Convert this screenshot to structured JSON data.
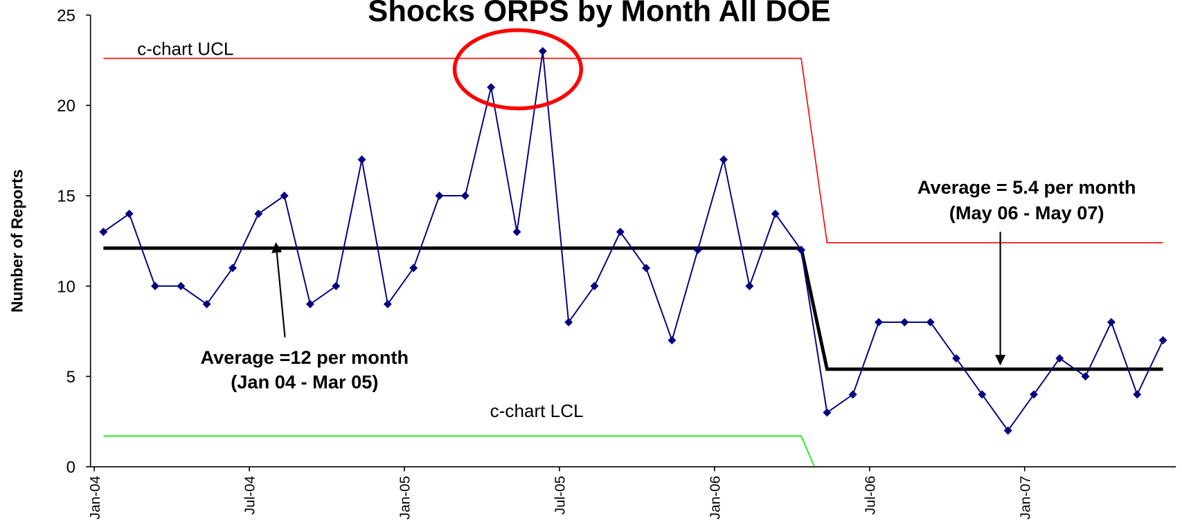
{
  "chart_data": {
    "type": "line",
    "title": "Shocks ORPS by Month All DOE",
    "y_label": "Number of Reports",
    "categories": [
      "Jan-04",
      null,
      null,
      null,
      null,
      null,
      "Jul-04",
      null,
      null,
      null,
      null,
      null,
      "Jan-05",
      null,
      null,
      null,
      null,
      null,
      "Jul-05",
      null,
      null,
      null,
      null,
      null,
      "Jan-06",
      null,
      null,
      null,
      null,
      null,
      "Jul-06",
      null,
      null,
      null,
      null,
      null,
      "Jan-07",
      null,
      null,
      null,
      null,
      null
    ],
    "series": [
      {
        "color": "#000080",
        "markers": true,
        "values": [
          13,
          14,
          10,
          10,
          9,
          11,
          14,
          15,
          9,
          10,
          17,
          9,
          11,
          15,
          15,
          21,
          13,
          23,
          8,
          10,
          13,
          11,
          7,
          12,
          17,
          10,
          14,
          12,
          3,
          4,
          8,
          8,
          8,
          6,
          4,
          2,
          4,
          6,
          5,
          8,
          4,
          7
        ]
      },
      {
        "name": "c-chart UCL",
        "color": "#ff0000",
        "values": [
          22.6,
          22.6,
          22.6,
          22.6,
          22.6,
          22.6,
          22.6,
          22.6,
          22.6,
          22.6,
          22.6,
          22.6,
          22.6,
          22.6,
          22.6,
          22.6,
          22.6,
          22.6,
          22.6,
          22.6,
          22.6,
          22.6,
          22.6,
          22.6,
          22.6,
          22.6,
          22.6,
          22.6,
          12.4,
          12.4,
          12.4,
          12.4,
          12.4,
          12.4,
          12.4,
          12.4,
          12.4,
          12.4,
          12.4,
          12.4,
          12.4,
          12.4
        ]
      },
      {
        "color": "#000000",
        "values": [
          12.1,
          12.1,
          12.1,
          12.1,
          12.1,
          12.1,
          12.1,
          12.1,
          12.1,
          12.1,
          12.1,
          12.1,
          12.1,
          12.1,
          12.1,
          12.1,
          12.1,
          12.1,
          12.1,
          12.1,
          12.1,
          12.1,
          12.1,
          12.1,
          12.1,
          12.1,
          12.1,
          12.1,
          5.4,
          5.4,
          5.4,
          5.4,
          5.4,
          5.4,
          5.4,
          5.4,
          5.4,
          5.4,
          5.4,
          5.4,
          5.4,
          5.4
        ]
      },
      {
        "name": "c-chart LCL",
        "color": "#00ee00",
        "values": [
          1.7,
          1.7,
          1.7,
          1.7,
          1.7,
          1.7,
          1.7,
          1.7,
          1.7,
          1.7,
          1.7,
          1.7,
          1.7,
          1.7,
          1.7,
          1.7,
          1.7,
          1.7,
          1.7,
          1.7,
          1.7,
          1.7,
          1.7,
          1.7,
          1.7,
          1.7,
          1.7,
          1.7,
          -1.6,
          -1.6,
          -1.6,
          -1.6,
          -1.6,
          -1.6,
          -1.6,
          -1.6,
          -1.6,
          -1.6,
          -1.6,
          -1.6,
          -1.6,
          -1.6
        ]
      }
    ],
    "annotations": [
      "Average =12 per month",
      "(Jan 04 - Mar 05)",
      "Average = 5.4 per month",
      "(May 06 - May 07)"
    ],
    "ylim": [
      0,
      25
    ],
    "yticks": [
      0,
      5,
      10,
      15,
      20,
      25
    ],
    "grid": false
  }
}
